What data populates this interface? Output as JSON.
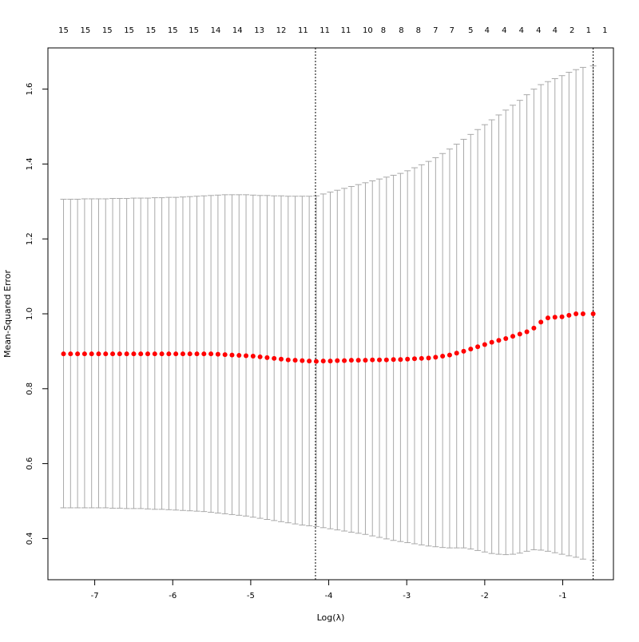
{
  "chart_data": {
    "type": "scatter",
    "xlabel": "Log(λ)",
    "ylabel": "Mean-Squared Error",
    "xlim": [
      -7.6,
      -0.35
    ],
    "ylim": [
      0.29,
      1.71
    ],
    "x_ticks": [
      -7,
      -6,
      -5,
      -4,
      -3,
      -2,
      -1
    ],
    "y_ticks": [
      0.4,
      0.6,
      0.8,
      1.0,
      1.2,
      1.4,
      1.6
    ],
    "y_tick_labels": [
      "0.4",
      "0.6",
      "0.8",
      "1.0",
      "1.2",
      "1.4",
      "1.6"
    ],
    "top_axis_labels": [
      {
        "x": -7.4,
        "label": "15"
      },
      {
        "x": -7.12,
        "label": "15"
      },
      {
        "x": -6.84,
        "label": "15"
      },
      {
        "x": -6.56,
        "label": "15"
      },
      {
        "x": -6.28,
        "label": "15"
      },
      {
        "x": -6.0,
        "label": "15"
      },
      {
        "x": -5.73,
        "label": "15"
      },
      {
        "x": -5.45,
        "label": "14"
      },
      {
        "x": -5.17,
        "label": "14"
      },
      {
        "x": -4.89,
        "label": "13"
      },
      {
        "x": -4.61,
        "label": "12"
      },
      {
        "x": -4.33,
        "label": "11"
      },
      {
        "x": -4.05,
        "label": "11"
      },
      {
        "x": -3.78,
        "label": "11"
      },
      {
        "x": -3.5,
        "label": "10"
      },
      {
        "x": -3.3,
        "label": "8"
      },
      {
        "x": -3.07,
        "label": "8"
      },
      {
        "x": -2.85,
        "label": "8"
      },
      {
        "x": -2.63,
        "label": "7"
      },
      {
        "x": -2.42,
        "label": "7"
      },
      {
        "x": -2.18,
        "label": "5"
      },
      {
        "x": -1.97,
        "label": "4"
      },
      {
        "x": -1.75,
        "label": "4"
      },
      {
        "x": -1.53,
        "label": "4"
      },
      {
        "x": -1.31,
        "label": "4"
      },
      {
        "x": -1.1,
        "label": "4"
      },
      {
        "x": -0.88,
        "label": "2"
      },
      {
        "x": -0.67,
        "label": "1"
      },
      {
        "x": -0.46,
        "label": "1"
      }
    ],
    "vlines": [
      -4.17,
      -0.61
    ],
    "grid": false,
    "point_color": "#ff0000",
    "errorbar_color": "#a9a9a9",
    "series": [
      {
        "name": "",
        "x": [
          -7.4,
          -7.31,
          -7.22,
          -7.13,
          -7.04,
          -6.95,
          -6.86,
          -6.77,
          -6.68,
          -6.59,
          -6.5,
          -6.41,
          -6.32,
          -6.23,
          -6.14,
          -6.05,
          -5.96,
          -5.87,
          -5.78,
          -5.69,
          -5.6,
          -5.51,
          -5.42,
          -5.33,
          -5.24,
          -5.15,
          -5.06,
          -4.97,
          -4.88,
          -4.79,
          -4.7,
          -4.61,
          -4.52,
          -4.43,
          -4.34,
          -4.25,
          -4.16,
          -4.07,
          -3.98,
          -3.89,
          -3.8,
          -3.71,
          -3.62,
          -3.53,
          -3.44,
          -3.35,
          -3.26,
          -3.17,
          -3.08,
          -2.99,
          -2.9,
          -2.81,
          -2.72,
          -2.63,
          -2.54,
          -2.45,
          -2.36,
          -2.27,
          -2.18,
          -2.09,
          -2.0,
          -1.91,
          -1.82,
          -1.73,
          -1.64,
          -1.55,
          -1.46,
          -1.37,
          -1.28,
          -1.19,
          -1.1,
          -1.01,
          -0.92,
          -0.83,
          -0.74,
          -0.61
        ],
        "y": [
          0.893,
          0.893,
          0.893,
          0.893,
          0.893,
          0.893,
          0.893,
          0.893,
          0.893,
          0.893,
          0.893,
          0.893,
          0.893,
          0.893,
          0.893,
          0.893,
          0.893,
          0.893,
          0.893,
          0.893,
          0.893,
          0.893,
          0.892,
          0.891,
          0.89,
          0.889,
          0.888,
          0.887,
          0.885,
          0.883,
          0.881,
          0.879,
          0.877,
          0.876,
          0.875,
          0.874,
          0.873,
          0.874,
          0.874,
          0.875,
          0.875,
          0.876,
          0.876,
          0.876,
          0.877,
          0.877,
          0.877,
          0.878,
          0.878,
          0.879,
          0.88,
          0.881,
          0.882,
          0.884,
          0.887,
          0.89,
          0.895,
          0.9,
          0.906,
          0.912,
          0.918,
          0.924,
          0.929,
          0.934,
          0.94,
          0.946,
          0.952,
          0.962,
          0.978,
          0.989,
          0.991,
          0.992,
          0.996,
          1.0,
          1.0,
          1.0
        ],
        "upper": [
          1.306,
          1.306,
          1.306,
          1.307,
          1.307,
          1.307,
          1.307,
          1.308,
          1.308,
          1.308,
          1.309,
          1.309,
          1.309,
          1.31,
          1.31,
          1.311,
          1.311,
          1.312,
          1.313,
          1.314,
          1.315,
          1.316,
          1.317,
          1.318,
          1.318,
          1.318,
          1.318,
          1.317,
          1.316,
          1.316,
          1.315,
          1.315,
          1.314,
          1.314,
          1.314,
          1.314,
          1.315,
          1.32,
          1.325,
          1.33,
          1.335,
          1.34,
          1.345,
          1.35,
          1.355,
          1.36,
          1.365,
          1.37,
          1.375,
          1.382,
          1.39,
          1.398,
          1.407,
          1.417,
          1.428,
          1.44,
          1.453,
          1.466,
          1.479,
          1.492,
          1.505,
          1.518,
          1.531,
          1.544,
          1.557,
          1.57,
          1.585,
          1.6,
          1.612,
          1.62,
          1.628,
          1.636,
          1.645,
          1.652,
          1.658,
          1.662
        ]
      }
    ],
    "lower_estimates": [
      0.482,
      0.482,
      0.482,
      0.482,
      0.482,
      0.482,
      0.482,
      0.481,
      0.481,
      0.48,
      0.48,
      0.48,
      0.479,
      0.478,
      0.478,
      0.477,
      0.476,
      0.475,
      0.474,
      0.473,
      0.472,
      0.47,
      0.468,
      0.466,
      0.464,
      0.462,
      0.46,
      0.457,
      0.454,
      0.451,
      0.448,
      0.445,
      0.442,
      0.439,
      0.436,
      0.434,
      0.432,
      0.429,
      0.426,
      0.423,
      0.42,
      0.417,
      0.414,
      0.411,
      0.407,
      0.403,
      0.399,
      0.395,
      0.392,
      0.389,
      0.386,
      0.383,
      0.38,
      0.378,
      0.376,
      0.375,
      0.375,
      0.375,
      0.372,
      0.368,
      0.364,
      0.36,
      0.358,
      0.357,
      0.358,
      0.361,
      0.366,
      0.37,
      0.369,
      0.366,
      0.362,
      0.358,
      0.354,
      0.35,
      0.345,
      0.342
    ]
  }
}
